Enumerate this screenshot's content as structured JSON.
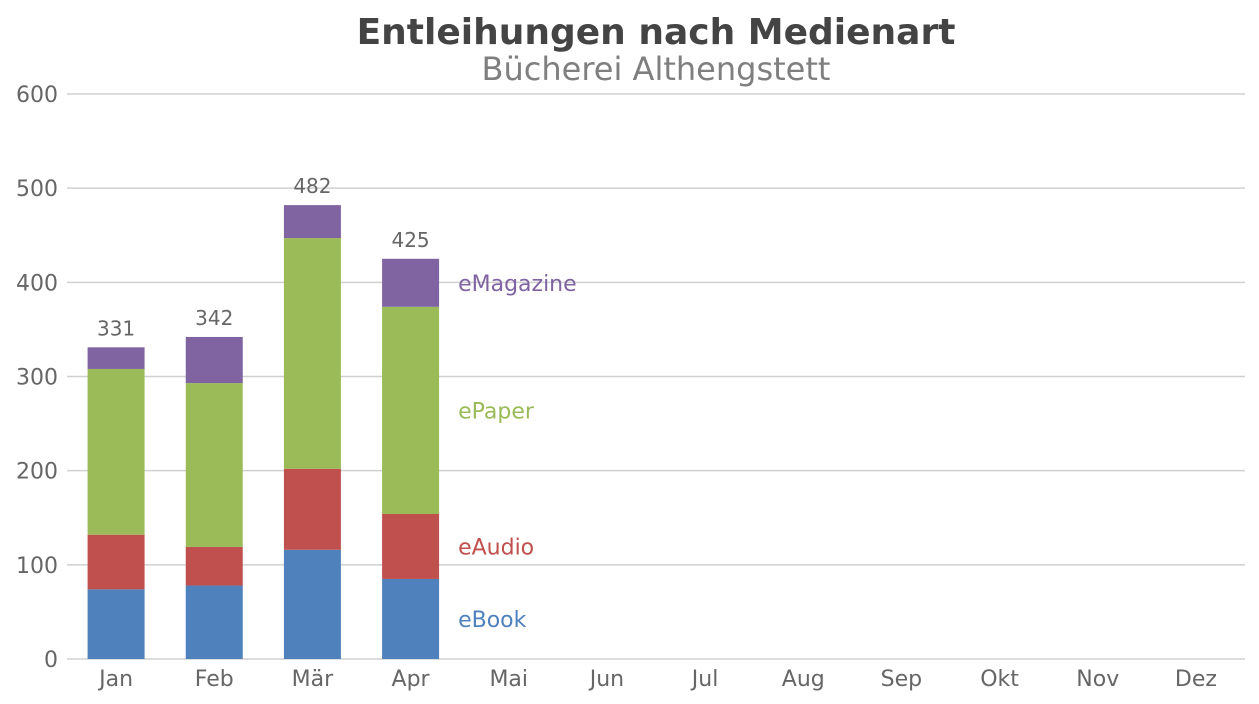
{
  "chart_data": {
    "type": "bar",
    "stacked": true,
    "title": "Entleihungen nach Medienart",
    "subtitle": "Bücherei Althengstett",
    "categories": [
      "Jan",
      "Feb",
      "Mär",
      "Apr",
      "Mai",
      "Jun",
      "Jul",
      "Aug",
      "Sep",
      "Okt",
      "Nov",
      "Dez"
    ],
    "series": [
      {
        "name": "eBook",
        "color": "#4f81bd",
        "values": [
          74,
          78,
          116,
          85,
          null,
          null,
          null,
          null,
          null,
          null,
          null,
          null
        ]
      },
      {
        "name": "eAudio",
        "color": "#c0504d",
        "values": [
          58,
          41,
          86,
          69,
          null,
          null,
          null,
          null,
          null,
          null,
          null,
          null
        ]
      },
      {
        "name": "ePaper",
        "color": "#9bbb59",
        "values": [
          176,
          174,
          245,
          220,
          null,
          null,
          null,
          null,
          null,
          null,
          null,
          null
        ]
      },
      {
        "name": "eMagazine",
        "color": "#8064a2",
        "values": [
          23,
          49,
          35,
          51,
          null,
          null,
          null,
          null,
          null,
          null,
          null,
          null
        ]
      }
    ],
    "totals": [
      331,
      342,
      482,
      425,
      null,
      null,
      null,
      null,
      null,
      null,
      null,
      null
    ],
    "ylim": [
      0,
      600
    ],
    "yticks": [
      0,
      100,
      200,
      300,
      400,
      500,
      600
    ],
    "grid": true,
    "legend": "inline-right-of-last-bar"
  }
}
